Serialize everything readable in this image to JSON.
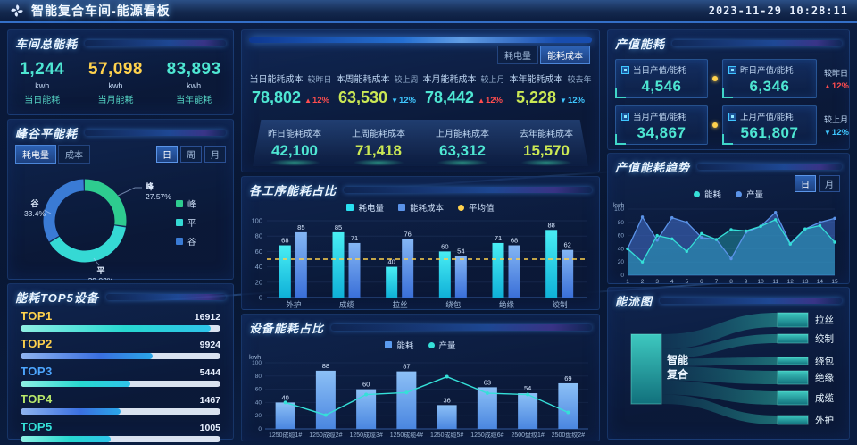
{
  "header": {
    "title": "智能复合车间-能源看板",
    "datetime": "2023-11-29 10:28:11",
    "logo": "pinwheel-icon"
  },
  "workshop_total": {
    "title": "车间总能耗",
    "stats": [
      {
        "value": "1,244",
        "unit": "kwh",
        "label": "当日能耗",
        "color": "#4ee6d2"
      },
      {
        "value": "57,098",
        "unit": "kwh",
        "label": "当月能耗",
        "color": "#ffd24d"
      },
      {
        "value": "83,893",
        "unit": "kwh",
        "label": "当年能耗",
        "color": "#4ee6d2"
      }
    ]
  },
  "peak_valley": {
    "title": "峰谷平能耗",
    "tabs": [
      {
        "label": "耗电量",
        "active": true
      },
      {
        "label": "成本",
        "active": false
      }
    ],
    "periods": [
      {
        "label": "日",
        "active": true
      },
      {
        "label": "周",
        "active": false
      },
      {
        "label": "月",
        "active": false
      }
    ]
  },
  "top5": {
    "title": "能耗TOP5设备",
    "items": [
      {
        "label": "TOP1",
        "value": "16912",
        "pct": 95,
        "bar": "cyan",
        "label_color": "#ffd24d"
      },
      {
        "label": "TOP2",
        "value": "9924",
        "pct": 66,
        "bar": "blue",
        "label_color": "#ffd24d"
      },
      {
        "label": "TOP3",
        "value": "5444",
        "pct": 55,
        "bar": "cyan",
        "label_color": "#4da6ff"
      },
      {
        "label": "TOP4",
        "value": "1467",
        "pct": 50,
        "bar": "blue",
        "label_color": "#b9e86a"
      },
      {
        "label": "TOP5",
        "value": "1005",
        "pct": 45,
        "bar": "cyan",
        "label_color": "#35e0d8"
      }
    ]
  },
  "cost_overview": {
    "tabs": [
      {
        "label": "耗电量",
        "active": false
      },
      {
        "label": "能耗成本",
        "active": true
      }
    ],
    "row1": [
      {
        "label": "当日能耗成本",
        "compare": "较昨日",
        "value": "78,802",
        "delta": "12%",
        "dir": "up",
        "value_color": "#4ee6d2"
      },
      {
        "label": "本周能耗成本",
        "compare": "较上周",
        "value": "63,530",
        "delta": "12%",
        "dir": "down",
        "value_color": "#cbe854"
      },
      {
        "label": "本月能耗成本",
        "compare": "较上月",
        "value": "78,442",
        "delta": "12%",
        "dir": "up",
        "value_color": "#4ee6d2"
      },
      {
        "label": "本年能耗成本",
        "compare": "较去年",
        "value": "5,228",
        "delta": "12%",
        "dir": "down",
        "value_color": "#cbe854"
      }
    ],
    "row2": [
      {
        "label": "昨日能耗成本",
        "value": "42,100",
        "value_color": "#4ee6d2"
      },
      {
        "label": "上周能耗成本",
        "value": "71,418",
        "value_color": "#cbe854"
      },
      {
        "label": "上月能耗成本",
        "value": "63,312",
        "value_color": "#4ee6d2"
      },
      {
        "label": "去年能耗成本",
        "value": "15,570",
        "value_color": "#cbe854"
      }
    ]
  },
  "process_panel": {
    "title": "各工序能耗占比"
  },
  "device_panel": {
    "title": "设备能耗占比"
  },
  "output_energy": {
    "title": "产值能耗",
    "boxes": [
      {
        "label": "当日产值/能耗",
        "value": "4,546"
      },
      {
        "label": "昨日产值/能耗",
        "value": "6,346"
      },
      {
        "label": "当月产值/能耗",
        "value": "34,867"
      },
      {
        "label": "上月产值/能耗",
        "value": "561,807"
      }
    ],
    "deltas": [
      {
        "compare": "较昨日",
        "delta": "12%",
        "dir": "up"
      },
      {
        "compare": "较上月",
        "delta": "12%",
        "dir": "down"
      }
    ]
  },
  "trend_panel": {
    "title": "产值能耗趋势",
    "periods": [
      {
        "label": "日",
        "active": true
      },
      {
        "label": "月",
        "active": false
      }
    ]
  },
  "sankey_panel": {
    "title": "能流图"
  },
  "chart_data": [
    {
      "id": "peak-valley-donut",
      "type": "pie",
      "title": "峰谷平能耗",
      "slices": [
        {
          "label": "峰",
          "value": 27.57,
          "color": "#2ecc8f"
        },
        {
          "label": "平",
          "value": 39.03,
          "color": "#35d9d4"
        },
        {
          "label": "谷",
          "value": 33.4,
          "color": "#3a7bd5"
        }
      ],
      "unit": "%",
      "legend_position": "right"
    },
    {
      "id": "process-energy-bars",
      "type": "bar",
      "title": "各工序能耗占比",
      "categories": [
        "外护",
        "成缆",
        "拉丝",
        "绕包",
        "绝缘",
        "绞制"
      ],
      "series": [
        {
          "name": "耗电量",
          "color": "#29dff0",
          "values": [
            68,
            85,
            40,
            60,
            71,
            88
          ]
        },
        {
          "name": "能耗成本",
          "color": "#5b93e8",
          "values": [
            85,
            71,
            76,
            54,
            68,
            62
          ]
        }
      ],
      "average_line": {
        "name": "平均值",
        "value": 50,
        "color": "#ffd24d"
      },
      "ylim": [
        0,
        100
      ],
      "yticks": [
        0,
        20,
        40,
        60,
        80,
        100
      ],
      "legend_position": "top"
    },
    {
      "id": "device-energy-bars",
      "type": "bar",
      "title": "设备能耗占比",
      "categories": [
        "1250成缆1#",
        "1250成缆2#",
        "1250成缆3#",
        "1250成缆4#",
        "1250成缆5#",
        "1250成缆6#",
        "2500盘绞1#",
        "2500盘绞2#"
      ],
      "series": [
        {
          "name": "能耗",
          "type": "bar",
          "color": "#5b9bef",
          "values": [
            40,
            88,
            60,
            87,
            36,
            63,
            54,
            69
          ]
        },
        {
          "name": "产量",
          "type": "line",
          "color": "#35e0d8",
          "values": [
            40,
            21,
            52,
            55,
            79,
            54,
            52,
            25
          ]
        }
      ],
      "ylabel": "kwh",
      "ylim": [
        0,
        100
      ],
      "yticks": [
        0,
        20,
        40,
        60,
        80,
        100
      ],
      "legend_position": "top"
    },
    {
      "id": "output-energy-trend",
      "type": "area",
      "title": "产值能耗趋势",
      "x": [
        1,
        2,
        3,
        4,
        5,
        6,
        7,
        8,
        9,
        10,
        11,
        12,
        13,
        14,
        15
      ],
      "series": [
        {
          "name": "能耗",
          "color": "#35e0d8",
          "values": [
            40,
            20,
            60,
            55,
            36,
            63,
            54,
            69,
            67,
            74,
            84,
            47,
            70,
            75,
            50
          ]
        },
        {
          "name": "产量",
          "color": "#5b93e8",
          "values": [
            40,
            88,
            53,
            87,
            80,
            57,
            54,
            25,
            65,
            74,
            95,
            48,
            70,
            80,
            86
          ]
        }
      ],
      "ylabel": "kwh",
      "ylim": [
        0,
        100
      ],
      "yticks": [
        0,
        20,
        40,
        60,
        80,
        100
      ],
      "legend_position": "top"
    },
    {
      "id": "energy-flow-sankey",
      "type": "sankey",
      "title": "能流图",
      "source": "智能复合",
      "flows": [
        {
          "target": "拉丝",
          "value": 16
        },
        {
          "target": "绞制",
          "value": 10
        },
        {
          "target": "绕包",
          "value": 8
        },
        {
          "target": "绝缘",
          "value": 15
        },
        {
          "target": "成缆",
          "value": 15
        },
        {
          "target": "外护",
          "value": 10
        }
      ],
      "node_color": "#23aaa4",
      "flow_color": "#1e8c96"
    }
  ]
}
